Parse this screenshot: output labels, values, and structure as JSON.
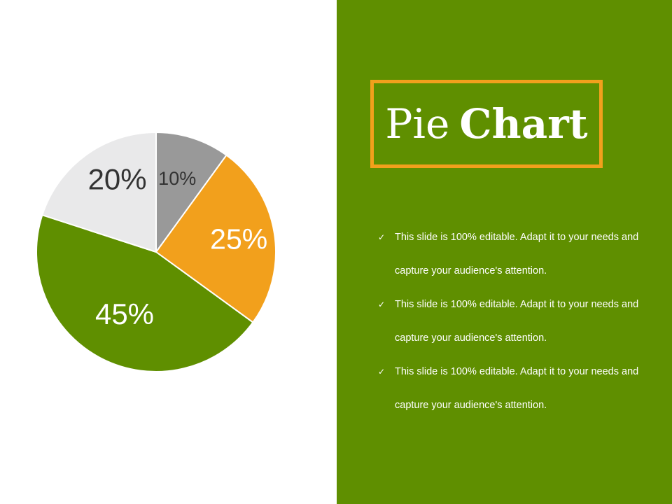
{
  "colors": {
    "panel": "#5f8f00",
    "accent": "#f2a01c",
    "pie_gray": "#999999",
    "pie_orange": "#f2a01c",
    "pie_green": "#5f8f00",
    "pie_light": "#e9e9ea"
  },
  "slide": {
    "title_part1": "Pie",
    "title_part2": "Chart",
    "bullets": [
      {
        "icon": "check-icon",
        "text": "This slide is 100% editable. Adapt it to your needs and capture your audience's attention."
      },
      {
        "icon": "check-icon",
        "text": "This slide is 100% editable. Adapt it to your needs and capture your audience's attention."
      },
      {
        "icon": "check-icon",
        "text": "This slide is 100% editable. Adapt it to your needs and capture your audience's attention."
      }
    ]
  },
  "chart_data": {
    "type": "pie",
    "title": "",
    "slices": [
      {
        "label": "10%",
        "value": 10,
        "color": "#999999"
      },
      {
        "label": "25%",
        "value": 25,
        "color": "#f2a01c"
      },
      {
        "label": "45%",
        "value": 45,
        "color": "#5f8f00"
      },
      {
        "label": "20%",
        "value": 20,
        "color": "#e9e9ea"
      }
    ],
    "start_angle_deg": 0,
    "direction": "clockwise",
    "legend": "none"
  }
}
